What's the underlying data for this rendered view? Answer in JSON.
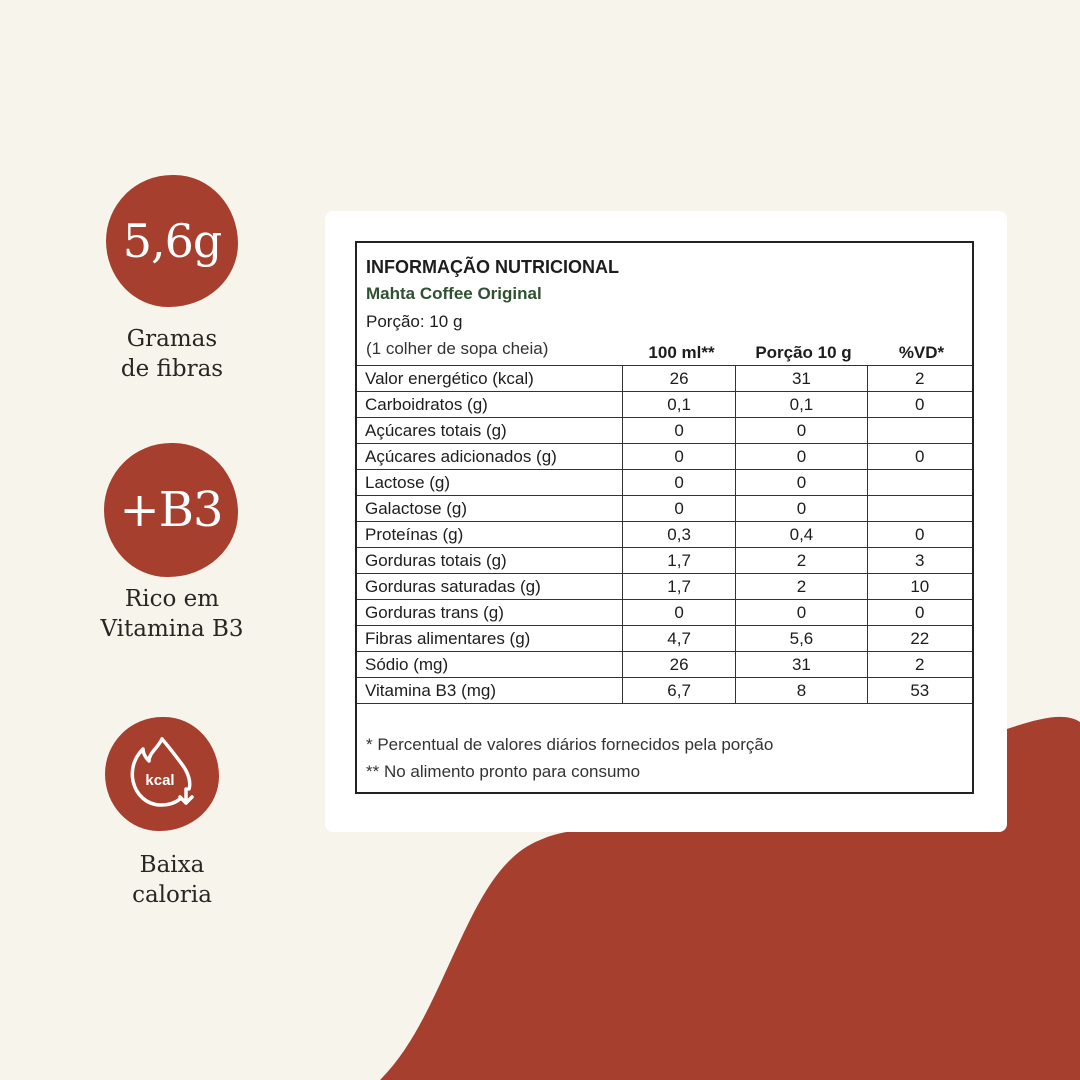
{
  "features": [
    {
      "badge": "5,6g",
      "caption_line1": "Gramas",
      "caption_line2": "de fibras"
    },
    {
      "badge": "+B3",
      "caption_line1": "Rico em",
      "caption_line2": "Vitamina B3"
    },
    {
      "badge_icon": "flame-kcal-down-icon",
      "badge_icon_text": "kcal",
      "caption_line1": "Baixa",
      "caption_line2": "caloria"
    }
  ],
  "nutrition": {
    "title": "INFORMAÇÃO NUTRICIONAL",
    "product": "Mahta Coffee Original",
    "portion": "Porção: 10 g",
    "portion_measure": "(1 colher de sopa cheia)",
    "columns": [
      "100 ml**",
      "Porção 10 g",
      "%VD*"
    ],
    "rows": [
      {
        "label": "Valor energético (kcal)",
        "v100": "26",
        "portion": "31",
        "vd": "2"
      },
      {
        "label": "Carboidratos (g)",
        "v100": "0,1",
        "portion": "0,1",
        "vd": "0"
      },
      {
        "label": "Açúcares totais (g)",
        "v100": "0",
        "portion": "0",
        "vd": ""
      },
      {
        "label": "Açúcares adicionados (g)",
        "v100": "0",
        "portion": "0",
        "vd": "0"
      },
      {
        "label": "Lactose (g)",
        "v100": "0",
        "portion": "0",
        "vd": ""
      },
      {
        "label": "Galactose (g)",
        "v100": "0",
        "portion": "0",
        "vd": ""
      },
      {
        "label": "Proteínas (g)",
        "v100": "0,3",
        "portion": "0,4",
        "vd": "0"
      },
      {
        "label": "Gorduras totais (g)",
        "v100": "1,7",
        "portion": "2",
        "vd": "3"
      },
      {
        "label": "Gorduras saturadas (g)",
        "v100": "1,7",
        "portion": "2",
        "vd": "10"
      },
      {
        "label": "Gorduras trans (g)",
        "v100": "0",
        "portion": "0",
        "vd": "0"
      },
      {
        "label": "Fibras alimentares (g)",
        "v100": "4,7",
        "portion": "5,6",
        "vd": "22"
      },
      {
        "label": "Sódio (mg)",
        "v100": "26",
        "portion": "31",
        "vd": "2"
      },
      {
        "label": "Vitamina B3 (mg)",
        "v100": "6,7",
        "portion": "8",
        "vd": "53"
      }
    ],
    "footnote1": "* Percentual de valores diários fornecidos pela porção",
    "footnote2": "** No alimento pronto para consumo"
  },
  "colors": {
    "background": "#f7f4ec",
    "accent": "#a63f2d",
    "product_green": "#2f5132"
  }
}
